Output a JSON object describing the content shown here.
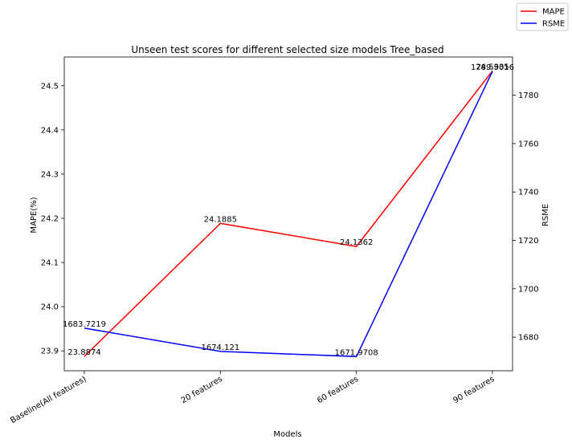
{
  "chart_data": {
    "type": "line",
    "title": "Unseen test scores for different selected size models Tree_based",
    "xlabel": "Models",
    "ylabel_left": "MAPE(%)",
    "ylabel_right": "RSME",
    "categories": [
      "Baseline(All features)",
      "20 features",
      "60 features",
      "90 features"
    ],
    "series": [
      {
        "name": "MAPE",
        "color": "#ff0000",
        "axis": "left",
        "values": [
          23.8874,
          24.1885,
          24.1362,
          24.5335
        ],
        "labels": [
          "23.8874",
          "24.1885",
          "24.1362",
          "24.5335"
        ]
      },
      {
        "name": "RSME",
        "color": "#0000ff",
        "axis": "right",
        "values": [
          1683.7219,
          1674.121,
          1671.9708,
          1789.9016
        ],
        "labels": [
          "1683.7219",
          "1674.121",
          "1671.9708",
          "1789.9016"
        ]
      }
    ],
    "ylim_left": [
      23.855,
      24.565
    ],
    "yticks_left": [
      "23.9",
      "24.0",
      "24.1",
      "24.2",
      "24.3",
      "24.4",
      "24.5"
    ],
    "ylim_right": [
      1666.1,
      1795.8
    ],
    "yticks_right": [
      "1680",
      "1700",
      "1720",
      "1740",
      "1760",
      "1780"
    ],
    "grid": false,
    "legend_position": "top-right"
  }
}
